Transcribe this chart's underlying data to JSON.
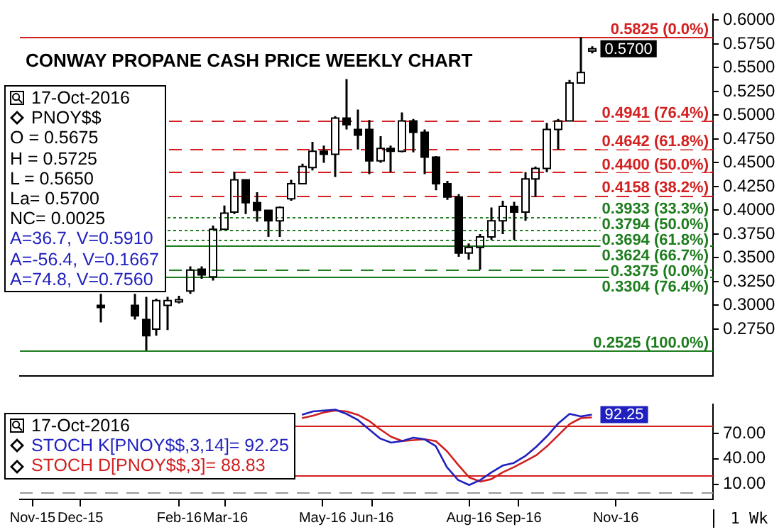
{
  "chart_data": [
    {
      "type": "candlestick",
      "title": "CONWAY PROPANE CASH PRICE WEEKLY CHART",
      "color": "#000000",
      "x": [
        "2015-12-14",
        "2016-01-04",
        "2016-01-11",
        "2016-01-18",
        "2016-01-25",
        "2016-02-01",
        "2016-02-08",
        "2016-02-15",
        "2016-02-22",
        "2016-02-29",
        "2016-03-07",
        "2016-03-14",
        "2016-03-21",
        "2016-03-28",
        "2016-04-04",
        "2016-04-11",
        "2016-04-18",
        "2016-04-25",
        "2016-05-02",
        "2016-05-09",
        "2016-05-16",
        "2016-05-23",
        "2016-05-30",
        "2016-06-06",
        "2016-06-13",
        "2016-06-20",
        "2016-06-27",
        "2016-07-04",
        "2016-07-11",
        "2016-07-18",
        "2016-07-25",
        "2016-08-01",
        "2016-08-08",
        "2016-08-15",
        "2016-08-22",
        "2016-08-29",
        "2016-09-05",
        "2016-09-12",
        "2016-09-19",
        "2016-09-26",
        "2016-10-03",
        "2016-10-10",
        "2016-10-17"
      ],
      "ohlc": [
        [
          0.3,
          0.312,
          0.282,
          0.298
        ],
        [
          0.3,
          0.312,
          0.285,
          0.289
        ],
        [
          0.285,
          0.309,
          0.2525,
          0.268
        ],
        [
          0.275,
          0.307,
          0.268,
          0.305
        ],
        [
          0.3,
          0.309,
          0.274,
          0.305
        ],
        [
          0.305,
          0.31,
          0.302,
          0.306
        ],
        [
          0.315,
          0.341,
          0.312,
          0.337
        ],
        [
          0.338,
          0.341,
          0.328,
          0.332
        ],
        [
          0.33,
          0.384,
          0.326,
          0.38
        ],
        [
          0.38,
          0.405,
          0.38,
          0.397
        ],
        [
          0.398,
          0.44,
          0.396,
          0.432
        ],
        [
          0.432,
          0.432,
          0.396,
          0.408
        ],
        [
          0.408,
          0.419,
          0.388,
          0.4
        ],
        [
          0.4,
          0.4,
          0.372,
          0.389
        ],
        [
          0.389,
          0.404,
          0.372,
          0.403
        ],
        [
          0.412,
          0.432,
          0.41,
          0.428
        ],
        [
          0.428,
          0.449,
          0.428,
          0.446
        ],
        [
          0.445,
          0.472,
          0.442,
          0.462
        ],
        [
          0.462,
          0.468,
          0.45,
          0.459
        ],
        [
          0.459,
          0.499,
          0.435,
          0.497
        ],
        [
          0.497,
          0.538,
          0.485,
          0.49
        ],
        [
          0.485,
          0.506,
          0.464,
          0.479
        ],
        [
          0.485,
          0.495,
          0.438,
          0.452
        ],
        [
          0.452,
          0.478,
          0.45,
          0.465
        ],
        [
          0.465,
          0.468,
          0.44,
          0.462
        ],
        [
          0.462,
          0.503,
          0.461,
          0.494
        ],
        [
          0.494,
          0.496,
          0.461,
          0.482
        ],
        [
          0.482,
          0.485,
          0.438,
          0.456
        ],
        [
          0.456,
          0.457,
          0.421,
          0.428
        ],
        [
          0.428,
          0.431,
          0.411,
          0.414
        ],
        [
          0.414,
          0.417,
          0.351,
          0.355
        ],
        [
          0.355,
          0.365,
          0.348,
          0.361
        ],
        [
          0.361,
          0.375,
          0.3375,
          0.372
        ],
        [
          0.372,
          0.403,
          0.369,
          0.389
        ],
        [
          0.389,
          0.41,
          0.375,
          0.404
        ],
        [
          0.404,
          0.409,
          0.369,
          0.398
        ],
        [
          0.398,
          0.44,
          0.389,
          0.433
        ],
        [
          0.433,
          0.446,
          0.414,
          0.444
        ],
        [
          0.444,
          0.492,
          0.44,
          0.485
        ],
        [
          0.485,
          0.496,
          0.464,
          0.494
        ],
        [
          0.494,
          0.537,
          0.494,
          0.534
        ],
        [
          0.534,
          0.5825,
          0.534,
          0.545
        ],
        [
          0.5675,
          0.5725,
          0.565,
          0.57
        ]
      ],
      "xlim": [
        "2015-10-24",
        "2017-01-01"
      ],
      "ylim": [
        0.226,
        0.606
      ],
      "yticks": [
        {
          "value": 0.275,
          "label": "0.2750"
        },
        {
          "value": 0.3,
          "label": "0.3000"
        },
        {
          "value": 0.325,
          "label": "0.3250"
        },
        {
          "value": 0.35,
          "label": "0.3500"
        },
        {
          "value": 0.375,
          "label": "0.3750"
        },
        {
          "value": 0.4,
          "label": "0.4000"
        },
        {
          "value": 0.425,
          "label": "0.4250"
        },
        {
          "value": 0.45,
          "label": "0.4500"
        },
        {
          "value": 0.475,
          "label": "0.4750"
        },
        {
          "value": 0.5,
          "label": "0.5000"
        },
        {
          "value": 0.525,
          "label": "0.5250"
        },
        {
          "value": 0.55,
          "label": "0.5500"
        },
        {
          "value": 0.575,
          "label": "0.5750"
        },
        {
          "value": 0.6,
          "label": "0.6000"
        }
      ],
      "tick_labels": "y",
      "ref_lines": [
        {
          "axis": "y",
          "value": 0.5825,
          "label": "0.5825 (0.0%)",
          "color": "#d42020",
          "line_style": "solid"
        },
        {
          "axis": "y",
          "value": 0.4941,
          "label": "0.4941 (76.4%)",
          "color": "#d42020",
          "line_style": "dashed"
        },
        {
          "axis": "y",
          "value": 0.4642,
          "label": "0.4642 (61.8%)",
          "color": "#d42020",
          "line_style": "dashed"
        },
        {
          "axis": "y",
          "value": 0.44,
          "label": "0.4400 (50.0%)",
          "color": "#d42020",
          "line_style": "dashed"
        },
        {
          "axis": "y",
          "value": 0.4158,
          "label": "0.4158 (38.2%)",
          "color": "#d42020",
          "line_style": "dashed"
        },
        {
          "axis": "y",
          "value": 0.3933,
          "label": "0.3933 (33.3%)",
          "color": "#1e7d1e",
          "line_style": "dotted"
        },
        {
          "axis": "y",
          "value": 0.3794,
          "label": "0.3794 (50.0%)",
          "color": "#1e7d1e",
          "line_style": "dotted"
        },
        {
          "axis": "y",
          "value": 0.3694,
          "label": "0.3694 (61.8%)",
          "color": "#1e7d1e",
          "line_style": "dotted"
        },
        {
          "axis": "y",
          "value": 0.3624,
          "label": "0.3624 (66.7%)",
          "color": "#1e7d1e",
          "line_style": "solid"
        },
        {
          "axis": "y",
          "value": 0.3375,
          "label": "0.3375 (0.0%)",
          "color": "#1e7d1e",
          "line_style": "dashed"
        },
        {
          "axis": "y",
          "value": 0.3304,
          "label": "0.3304 (76.4%)",
          "color": "#1e7d1e",
          "line_style": "solid"
        },
        {
          "axis": "y",
          "value": 0.2525,
          "label": "0.2525 (100.0%)",
          "color": "#1e7d1e",
          "line_style": "solid"
        }
      ],
      "annotations": [
        "17-Oct-2016",
        "PNOY$$",
        "O = 0.5675",
        "H = 0.5725",
        "L = 0.5650",
        "La= 0.5700",
        "NC= 0.0025",
        "A=36.7, V=0.5910",
        "A=-56.4, V=0.1667",
        "A=74.8, V=0.7560",
        {
          "text": "0.5700",
          "x": "2016-10-17",
          "y": 0.57
        }
      ]
    },
    {
      "type": "line",
      "legend": "bottom left",
      "marker": "none",
      "x": [
        "2016-04-18",
        "2016-04-25",
        "2016-05-02",
        "2016-05-09",
        "2016-05-16",
        "2016-05-23",
        "2016-05-30",
        "2016-06-06",
        "2016-06-13",
        "2016-06-20",
        "2016-06-27",
        "2016-07-04",
        "2016-07-11",
        "2016-07-18",
        "2016-07-25",
        "2016-08-01",
        "2016-08-08",
        "2016-08-15",
        "2016-08-22",
        "2016-08-29",
        "2016-09-05",
        "2016-09-12",
        "2016-09-19",
        "2016-09-26",
        "2016-10-03",
        "2016-10-10",
        "2016-10-17"
      ],
      "series": [
        {
          "name": "STOCH K[PNOY$$,3,14]= 92.25",
          "color": "#2020c0",
          "values": [
            92,
            96,
            97,
            98,
            93,
            86,
            75,
            64,
            59,
            61,
            65,
            63,
            55,
            30,
            15,
            9,
            15,
            24,
            32,
            35,
            43,
            54,
            67,
            82,
            93,
            90,
            92.25
          ]
        },
        {
          "name": "STOCH D[PNOY$$,3]= 88.83",
          "color": "#d02020",
          "values": [
            88,
            91,
            95,
            97,
            96,
            92,
            85,
            75,
            66,
            61,
            62,
            63,
            61,
            49,
            33,
            18,
            13,
            16,
            24,
            30,
            37,
            44,
            55,
            68,
            81,
            88,
            88.83
          ]
        }
      ],
      "xlim": [
        "2015-10-24",
        "2017-01-01"
      ],
      "xticks": [
        {
          "value": "2015-11-01",
          "label": "Nov-15"
        },
        {
          "value": "2015-12-01",
          "label": "Dec-15"
        },
        {
          "value": "2016-02-01",
          "label": "Feb-16"
        },
        {
          "value": "2016-03-01",
          "label": "Mar-16"
        },
        {
          "value": "2016-05-01",
          "label": "May-16"
        },
        {
          "value": "2016-06-01",
          "label": "Jun-16"
        },
        {
          "value": "2016-08-01",
          "label": "Aug-16"
        },
        {
          "value": "2016-09-01",
          "label": "Sep-16"
        },
        {
          "value": "2016-11-01",
          "label": "Nov-16"
        }
      ],
      "ylim": [
        -8,
        104
      ],
      "yticks": [
        {
          "value": 10,
          "label": "10.00"
        },
        {
          "value": 40,
          "label": "40.00"
        },
        {
          "value": 70,
          "label": "70.00"
        }
      ],
      "ref_lines": [
        {
          "axis": "y",
          "value": 80,
          "color": "#d42020",
          "line_style": "solid"
        },
        {
          "axis": "y",
          "value": 20,
          "color": "#d42020",
          "line_style": "solid"
        },
        {
          "axis": "y",
          "value": 0,
          "color": "#999999",
          "line_style": "dashed"
        }
      ],
      "annotations": [
        "17-Oct-2016",
        {
          "text": "92.25",
          "x": "2016-10-17",
          "y": 92.25
        },
        "1 Wk"
      ]
    }
  ]
}
